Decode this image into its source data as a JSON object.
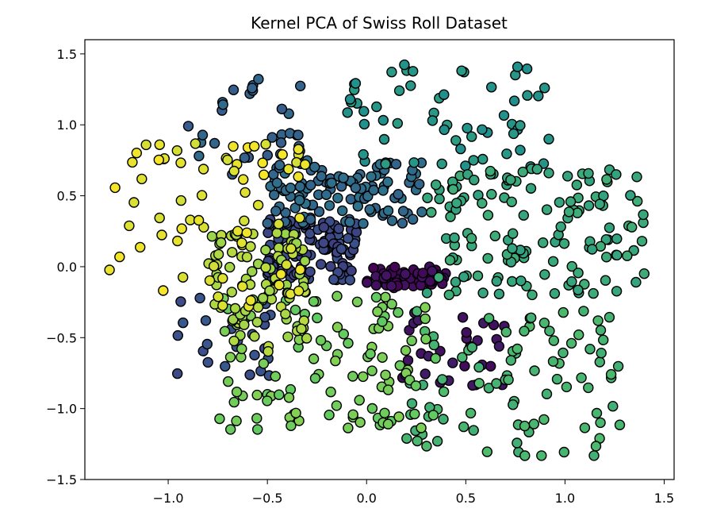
{
  "chart_data": {
    "type": "scatter",
    "title": "Kernel PCA of Swiss Roll Dataset",
    "xlabel": "",
    "ylabel": "",
    "xlim": [
      -1.42,
      1.55
    ],
    "ylim": [
      -1.5,
      1.6
    ],
    "grid": false,
    "x_ticks": [
      -1.0,
      -0.5,
      0.0,
      0.5,
      1.0,
      1.5
    ],
    "x_tick_labels": [
      "−1.0",
      "−0.5",
      "0.0",
      "0.5",
      "1.0",
      "1.5"
    ],
    "y_ticks": [
      -1.5,
      -1.0,
      -0.5,
      0.0,
      0.5,
      1.0,
      1.5
    ],
    "y_tick_labels": [
      "−1.5",
      "−1.0",
      "−0.5",
      "0.0",
      "0.5",
      "1.0",
      "1.5"
    ],
    "colormap": "viridis",
    "colormap_stops": [
      "#440154",
      "#3b528b",
      "#21918c",
      "#5ec962",
      "#fde725"
    ],
    "marker_edge_color": "#000000",
    "clusters": [
      {
        "name": "purple-core",
        "t": 0.03,
        "n": 60,
        "x_range": [
          0.0,
          0.4
        ],
        "y_range": [
          -0.15,
          0.0
        ]
      },
      {
        "name": "purple-lower",
        "t": 0.06,
        "n": 30,
        "x_range": [
          0.05,
          0.7
        ],
        "y_range": [
          -0.85,
          -0.3
        ]
      },
      {
        "name": "dark-blue-center",
        "t": 0.22,
        "n": 110,
        "x_range": [
          -0.5,
          -0.05
        ],
        "y_range": [
          -0.1,
          0.35
        ]
      },
      {
        "name": "dark-blue-left",
        "t": 0.25,
        "n": 25,
        "x_range": [
          -1.0,
          -0.45
        ],
        "y_range": [
          -0.8,
          -0.2
        ]
      },
      {
        "name": "steel-blue-upper",
        "t": 0.35,
        "n": 110,
        "x_range": [
          -0.5,
          0.3
        ],
        "y_range": [
          0.3,
          0.75
        ]
      },
      {
        "name": "blue-top-left",
        "t": 0.32,
        "n": 30,
        "x_range": [
          -0.9,
          -0.3
        ],
        "y_range": [
          0.6,
          1.35
        ]
      },
      {
        "name": "teal-top",
        "t": 0.52,
        "n": 60,
        "x_range": [
          -0.1,
          0.95
        ],
        "y_range": [
          0.7,
          1.45
        ]
      },
      {
        "name": "teal-right",
        "t": 0.6,
        "n": 140,
        "x_range": [
          0.3,
          1.4
        ],
        "y_range": [
          -0.2,
          0.7
        ]
      },
      {
        "name": "green-lower-right",
        "t": 0.66,
        "n": 90,
        "x_range": [
          0.2,
          1.3
        ],
        "y_range": [
          -1.35,
          -0.3
        ]
      },
      {
        "name": "light-green-lower",
        "t": 0.78,
        "n": 110,
        "x_range": [
          -0.75,
          0.35
        ],
        "y_range": [
          -1.15,
          -0.2
        ]
      },
      {
        "name": "yellow-green-center",
        "t": 0.87,
        "n": 90,
        "x_range": [
          -0.8,
          -0.3
        ],
        "y_range": [
          -0.6,
          0.25
        ]
      },
      {
        "name": "yellow-left",
        "t": 0.96,
        "n": 70,
        "x_range": [
          -1.3,
          -0.3
        ],
        "y_range": [
          -0.3,
          0.9
        ]
      }
    ]
  }
}
